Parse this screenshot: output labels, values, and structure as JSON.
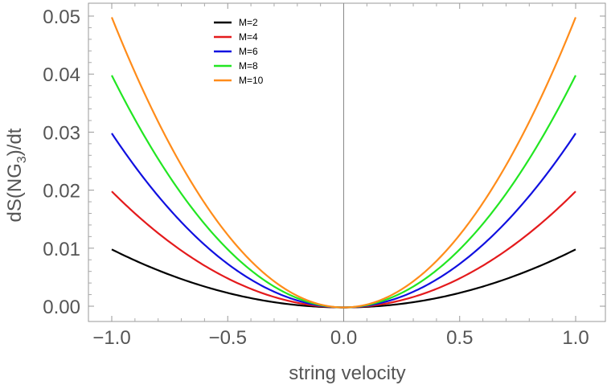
{
  "chart_data": {
    "type": "line",
    "xlabel": "string velocity",
    "ylabel": {
      "main": "dS(NG",
      "sub": "3",
      "rest": ")/dt"
    },
    "xlim": [
      -1.08,
      1.08
    ],
    "ylim": [
      -0.0035,
      0.0515
    ],
    "xticks": [
      -1.0,
      -0.5,
      0.0,
      0.5,
      1.0
    ],
    "xtick_labels": [
      "−1.0",
      "−0.5",
      "0.0",
      "0.5",
      "1.0"
    ],
    "yticks": [
      0.0,
      0.01,
      0.02,
      0.03,
      0.04,
      0.05
    ],
    "ytick_labels": [
      "0.00",
      "0.01",
      "0.02",
      "0.03",
      "0.04",
      "0.05"
    ],
    "grid": false,
    "legend_position": "top-left",
    "x": [
      -1.0,
      -0.9,
      -0.8,
      -0.7,
      -0.6,
      -0.5,
      -0.4,
      -0.3,
      -0.2,
      -0.1,
      0.0,
      0.1,
      0.2,
      0.3,
      0.4,
      0.5,
      0.6,
      0.7,
      0.8,
      0.9,
      1.0
    ],
    "series": [
      {
        "name": "M=2",
        "color": "#000000",
        "values": [
          0.01,
          0.0081,
          0.0064,
          0.0049,
          0.0036,
          0.0025,
          0.0016,
          0.0009,
          0.0004,
          0.0001,
          0.0,
          0.0001,
          0.0004,
          0.0009,
          0.0016,
          0.0025,
          0.0036,
          0.0049,
          0.0064,
          0.0081,
          0.01
        ]
      },
      {
        "name": "M=4",
        "color": "#e41a1c",
        "values": [
          0.02,
          0.0162,
          0.0128,
          0.0098,
          0.0072,
          0.005,
          0.0032,
          0.0018,
          0.0008,
          0.0002,
          0.0,
          0.0002,
          0.0008,
          0.0018,
          0.0032,
          0.005,
          0.0072,
          0.0098,
          0.0128,
          0.0162,
          0.02
        ]
      },
      {
        "name": "M=6",
        "color": "#1010e0",
        "values": [
          0.03,
          0.0243,
          0.0192,
          0.0147,
          0.0108,
          0.0075,
          0.0048,
          0.0027,
          0.0012,
          0.0003,
          0.0,
          0.0003,
          0.0012,
          0.0027,
          0.0048,
          0.0075,
          0.0108,
          0.0147,
          0.0192,
          0.0243,
          0.03
        ]
      },
      {
        "name": "M=8",
        "color": "#22e622",
        "values": [
          0.04,
          0.0324,
          0.0256,
          0.0196,
          0.0144,
          0.01,
          0.0064,
          0.0036,
          0.0016,
          0.0004,
          0.0,
          0.0004,
          0.0016,
          0.0036,
          0.0064,
          0.01,
          0.0144,
          0.0196,
          0.0256,
          0.0324,
          0.04
        ]
      },
      {
        "name": "M=10",
        "color": "#ff8c1a",
        "values": [
          0.05,
          0.0405,
          0.032,
          0.0245,
          0.018,
          0.0125,
          0.008,
          0.0045,
          0.002,
          0.0005,
          0.0,
          0.0005,
          0.002,
          0.0045,
          0.008,
          0.0125,
          0.018,
          0.0245,
          0.032,
          0.0405,
          0.05
        ]
      }
    ]
  }
}
